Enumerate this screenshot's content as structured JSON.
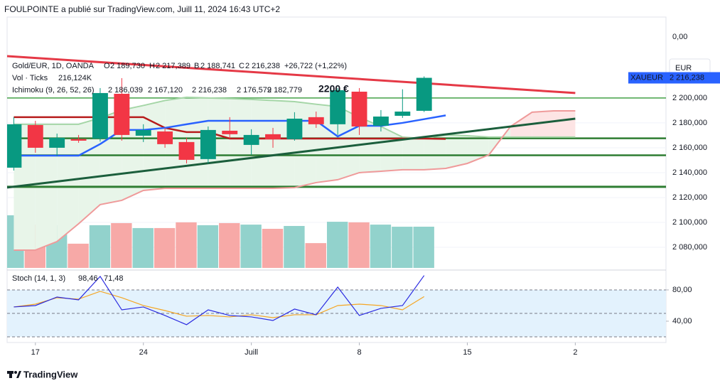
{
  "header": {
    "text": "FOULPOINTE a publié sur TradingView.com, Juill 11, 2024 16:43 UTC+2"
  },
  "footer": {
    "brand": "TradingView"
  },
  "currency_button": "EUR",
  "price_axis_top_label": "0,00",
  "price_tag": {
    "symbol": "XAUEUR",
    "label": "2 216,238",
    "value": 2216.238,
    "color": "#2962ff"
  },
  "legend": {
    "symbol": "Gold/EUR, 1D, OANDA",
    "fields": [
      {
        "key": "O",
        "label": "2 189,730"
      },
      {
        "key": "H",
        "label": "2 217,389"
      },
      {
        "key": "B",
        "label": "2 188,741"
      },
      {
        "key": "C",
        "label": "2 216,238"
      }
    ],
    "change": "+26,722 (+1,22%)",
    "color": "#089981"
  },
  "volume_legend": {
    "label": "Vol · Ticks",
    "value_label": "216,124K"
  },
  "ichimoku_legend": {
    "label": "Ichimoku (9, 26, 52, 26)",
    "values": [
      {
        "label": "2 186,039",
        "color": "#2962ff"
      },
      {
        "label": "2 167,120",
        "color": "#b71c1c"
      },
      {
        "label": "2 216,238",
        "color": "#43a047"
      },
      {
        "label": "2 176,579",
        "color": "#a5d6a7"
      },
      {
        "label": "2 182,779",
        "color": "#ef9a9a"
      }
    ]
  },
  "annotation": {
    "text": "2200 €",
    "color": "#2e7d32"
  },
  "chart_data": {
    "type": "candlestick",
    "up_color": "#089981",
    "down_color": "#f23645",
    "open": [
      2144.0,
      2178.3,
      2160.0,
      2167.0,
      2167.4,
      2203.4,
      2169.7,
      2173.1,
      2164.6,
      2150.9,
      2173.7,
      2162.3,
      2170.9,
      2166.9,
      2184.6,
      2178.9,
      2205.1,
      2177.7,
      2185.7,
      2189.73
    ],
    "high": [
      2184.6,
      2181.7,
      2171.4,
      2170.3,
      2208.0,
      2216.0,
      2178.9,
      2176.0,
      2168.0,
      2177.1,
      2184.6,
      2174.9,
      2176.0,
      2188.6,
      2189.1,
      2208.0,
      2208.0,
      2190.3,
      2207.0,
      2217.389
    ],
    "low": [
      2141.7,
      2156.0,
      2153.1,
      2164.0,
      2165.0,
      2165.7,
      2164.6,
      2160.0,
      2147.4,
      2147.4,
      2167.4,
      2154.3,
      2160.0,
      2165.7,
      2176.0,
      2170.3,
      2170.3,
      2173.1,
      2184.0,
      2188.741
    ],
    "close": [
      2178.9,
      2160.0,
      2168.0,
      2165.7,
      2204.0,
      2170.3,
      2174.3,
      2162.9,
      2150.3,
      2174.3,
      2170.9,
      2170.3,
      2166.9,
      2183.4,
      2178.9,
      2206.3,
      2177.1,
      2185.1,
      2189.1,
      2216.238
    ],
    "ylim": [
      2063.4,
      2265.1
    ],
    "yticks": [
      {
        "value": 2080,
        "label": "2 080,000"
      },
      {
        "value": 2100,
        "label": "2 100,000"
      },
      {
        "value": 2120,
        "label": "2 120,000"
      },
      {
        "value": 2140,
        "label": "2 140,000"
      },
      {
        "value": 2160,
        "label": "2 160,000"
      },
      {
        "value": 2180,
        "label": "2 180,000"
      },
      {
        "value": 2200,
        "label": "2 200,000"
      }
    ],
    "xlim": [
      -0.31,
      30.2
    ],
    "xticks": [
      {
        "value": 1,
        "label": "17"
      },
      {
        "value": 6,
        "label": "24"
      },
      {
        "value": 11,
        "label": "Juill"
      },
      {
        "value": 16,
        "label": "8"
      },
      {
        "value": 21,
        "label": "15"
      },
      {
        "value": 26,
        "label": "2"
      }
    ],
    "volume": {
      "values": [
        276,
        227,
        224,
        127,
        224,
        235,
        209,
        209,
        239,
        224,
        235,
        227,
        205,
        220,
        130,
        242,
        239,
        227,
        216,
        216.124
      ],
      "ylim": [
        0,
        600
      ],
      "up_color": "#92d2cc",
      "down_color": "#f7a9a7"
    },
    "ichimoku": [
      {
        "color": "#2962ff",
        "values": [
          2153.7,
          2153.7,
          2153.7,
          2153.7,
          2163,
          2174.3,
          2174.3,
          2176,
          2178.9,
          2181.7,
          2181.7,
          2181.7,
          2181.7,
          2181.7,
          2181.7,
          2169.1,
          2177.7,
          2177.7,
          2180,
          2183,
          2186.039
        ]
      },
      {
        "color": "#b71c1c",
        "values": [
          2184.6,
          2184.6,
          2184.6,
          2184.6,
          2184.6,
          2184.6,
          2184.6,
          2176,
          2172.6,
          2172.6,
          2167.4,
          2167.4,
          2167.4,
          2167.4,
          2167.4,
          2167.4,
          2167.4,
          2167.4,
          2167.4,
          2167.4,
          2167.12
        ]
      },
      {
        "color": "#a5d6a7",
        "values": [
          2178.9,
          2178.9,
          2178.9,
          2178.9,
          2184,
          2190.3,
          2194,
          2198,
          2200.6,
          2200,
          2199.5,
          2198.9,
          2198,
          2197.1,
          2195,
          2193.1,
          2184.6,
          2177.1,
          2168.6,
          2167.4,
          2170.3,
          2169.7,
          2168.6,
          2168.6,
          2168.6,
          2168.6,
          2168.6
        ]
      },
      {
        "color": "#ef9a9a",
        "values": [
          2077.7,
          2077.7,
          2084.6,
          2098.9,
          2114.3,
          2117.7,
          2125.7,
          2127.4,
          2127.4,
          2127.4,
          2127.4,
          2127.4,
          2127.4,
          2128,
          2132,
          2134.3,
          2140,
          2141.1,
          2142.3,
          2142.3,
          2143.4,
          2147.4,
          2154.3,
          2177.1,
          2188.6,
          2189.7,
          2189.7
        ]
      }
    ],
    "cloud_colors": {
      "up": "#e8f5e9",
      "down": "#fde4e4"
    },
    "horizontal_lines": [
      {
        "value": 2200,
        "color": "#43a047",
        "width": 1.5
      },
      {
        "value": 2167.6,
        "color": "#2e7d32",
        "width": 2.5
      },
      {
        "value": 2154,
        "color": "#2e7d32",
        "width": 2.5
      },
      {
        "value": 2128.6,
        "color": "#2e7d32",
        "width": 3
      }
    ],
    "trendlines": [
      {
        "color": "#e53946",
        "x": [
          -0.31,
          26
        ],
        "y": [
          2233.7,
          2204
        ]
      },
      {
        "color": "#1b5e3c",
        "x": [
          -0.31,
          26
        ],
        "y": [
          2128,
          2183.4
        ]
      }
    ],
    "stoch": {
      "label": "Stoch (14, 1, 3)",
      "ylim": [
        12.7,
        102.7
      ],
      "yticks": [
        {
          "value": 80,
          "label": "80,00"
        },
        {
          "value": 40,
          "label": "40,00"
        }
      ],
      "bands": [
        20,
        50,
        80
      ],
      "band_color": "#e3f2fd",
      "series": [
        {
          "color": "#2a2ae0",
          "value_label": "98,46",
          "values": [
            58.2,
            60,
            70.9,
            67.3,
            97.3,
            54.5,
            58.2,
            47.3,
            35.5,
            54.5,
            47.3,
            45.5,
            40.9,
            55.5,
            48.2,
            83.6,
            47.3,
            56.4,
            60,
            98.46
          ]
        },
        {
          "color": "#f5a623",
          "value_label": "71,48",
          "values": [
            58.2,
            61.8,
            70,
            68.2,
            78.2,
            70,
            60,
            53.6,
            46.4,
            47.3,
            45.5,
            48.2,
            44.5,
            48.2,
            48.2,
            60,
            61.8,
            60,
            54.5,
            71.48
          ]
        }
      ]
    }
  }
}
